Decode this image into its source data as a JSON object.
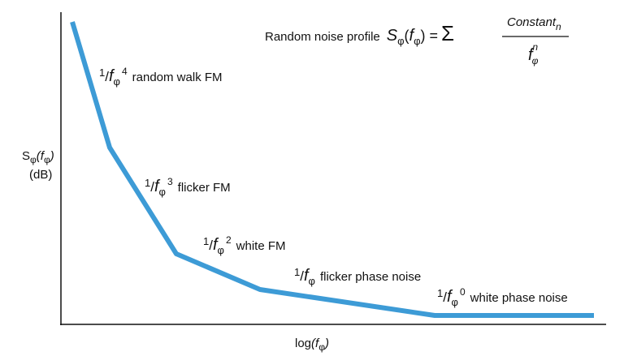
{
  "title": "Random noise profile",
  "formula": {
    "symbol": "S",
    "symbol_subscript": "φ",
    "open": "(",
    "variable": "f",
    "variable_subscript": "φ",
    "close": ") =",
    "sum": "Σ",
    "numerator": "Constant",
    "numerator_subscript": "n",
    "denominator": "f",
    "denominator_subscript": "φ",
    "denominator_power": "n"
  },
  "y_axis_label": {
    "symbol": "S",
    "symbol_subscript": "φ",
    "open": "(",
    "variable": "f",
    "variable_subscript": "φ",
    "close": ")",
    "unit": "(dB)"
  },
  "x_axis_label": {
    "prefix": "log",
    "open": "(",
    "variable": "f",
    "variable_subscript": "φ",
    "close": ")"
  },
  "segments": [
    {
      "numerator": "1",
      "slash": "/",
      "variable": "f",
      "subscript": "φ",
      "power": "4",
      "text": "random walk FM"
    },
    {
      "numerator": "1",
      "slash": "/",
      "variable": "f",
      "subscript": "φ",
      "power": "3",
      "text": "flicker FM"
    },
    {
      "numerator": "1",
      "slash": "/",
      "variable": "f",
      "subscript": "φ",
      "power": "2",
      "text": "white FM"
    },
    {
      "numerator": "1",
      "slash": "/",
      "variable": "f",
      "subscript": "φ",
      "text": "flicker phase noise"
    },
    {
      "numerator": "1",
      "slash": "/",
      "variable": "f",
      "subscript": "φ",
      "power": "0",
      "text": "white phase noise"
    }
  ]
}
